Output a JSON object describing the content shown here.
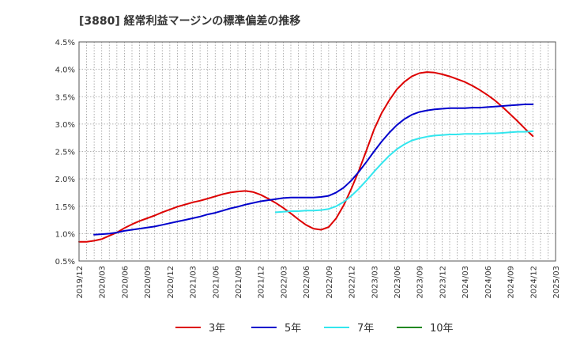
{
  "chart_data": {
    "type": "line",
    "title": "[3880]  経常利益マージンの標準偏差の推移",
    "xlabel": "",
    "ylabel": "",
    "ylim": [
      0.5,
      4.5
    ],
    "yticks": [
      "0.5%",
      "1.0%",
      "1.5%",
      "2.0%",
      "2.5%",
      "3.0%",
      "3.5%",
      "4.0%",
      "4.5%"
    ],
    "ytick_values": [
      0.5,
      1.0,
      1.5,
      2.0,
      2.5,
      3.0,
      3.5,
      4.0,
      4.5
    ],
    "xticks": [
      "2019/12",
      "2020/03",
      "2020/06",
      "2020/09",
      "2020/12",
      "2021/03",
      "2021/06",
      "2021/09",
      "2021/12",
      "2022/03",
      "2022/06",
      "2022/09",
      "2022/12",
      "2023/03",
      "2023/06",
      "2023/09",
      "2023/12",
      "2024/03",
      "2024/06",
      "2024/09",
      "2024/12",
      "2025/03"
    ],
    "grid": true,
    "legend_position": "bottom",
    "series": [
      {
        "name": "3年",
        "color": "#dd0000",
        "x": [
          "2019/12",
          "2020/01",
          "2020/02",
          "2020/03",
          "2020/04",
          "2020/05",
          "2020/06",
          "2020/07",
          "2020/08",
          "2020/09",
          "2020/10",
          "2020/11",
          "2020/12",
          "2021/01",
          "2021/02",
          "2021/03",
          "2021/04",
          "2021/05",
          "2021/06",
          "2021/07",
          "2021/08",
          "2021/09",
          "2021/10",
          "2021/11",
          "2021/12",
          "2022/01",
          "2022/02",
          "2022/03",
          "2022/04",
          "2022/05",
          "2022/06",
          "2022/07",
          "2022/08",
          "2022/09",
          "2022/10",
          "2022/11",
          "2022/12",
          "2023/01",
          "2023/02",
          "2023/03",
          "2023/04",
          "2023/05",
          "2023/06",
          "2023/07",
          "2023/08",
          "2023/09",
          "2023/10",
          "2023/11",
          "2023/12",
          "2024/01",
          "2024/02",
          "2024/03",
          "2024/04",
          "2024/05",
          "2024/06",
          "2024/07",
          "2024/08",
          "2024/09",
          "2024/10",
          "2024/11",
          "2024/12"
        ],
        "values": [
          0.85,
          0.85,
          0.87,
          0.9,
          0.96,
          1.02,
          1.1,
          1.17,
          1.23,
          1.28,
          1.33,
          1.39,
          1.44,
          1.49,
          1.53,
          1.57,
          1.6,
          1.64,
          1.68,
          1.72,
          1.75,
          1.77,
          1.78,
          1.76,
          1.71,
          1.64,
          1.56,
          1.47,
          1.37,
          1.26,
          1.16,
          1.09,
          1.07,
          1.12,
          1.28,
          1.52,
          1.82,
          2.15,
          2.52,
          2.9,
          3.2,
          3.43,
          3.63,
          3.77,
          3.87,
          3.93,
          3.95,
          3.94,
          3.91,
          3.87,
          3.82,
          3.77,
          3.7,
          3.62,
          3.53,
          3.43,
          3.31,
          3.18,
          3.05,
          2.91,
          2.78
        ]
      },
      {
        "name": "5年",
        "color": "#0000cc",
        "x": [
          "2020/02",
          "2020/03",
          "2020/04",
          "2020/05",
          "2020/06",
          "2020/07",
          "2020/08",
          "2020/09",
          "2020/10",
          "2020/11",
          "2020/12",
          "2021/01",
          "2021/02",
          "2021/03",
          "2021/04",
          "2021/05",
          "2021/06",
          "2021/07",
          "2021/08",
          "2021/09",
          "2021/10",
          "2021/11",
          "2021/12",
          "2022/01",
          "2022/02",
          "2022/03",
          "2022/04",
          "2022/05",
          "2022/06",
          "2022/07",
          "2022/08",
          "2022/09",
          "2022/10",
          "2022/11",
          "2022/12",
          "2023/01",
          "2023/02",
          "2023/03",
          "2023/04",
          "2023/05",
          "2023/06",
          "2023/07",
          "2023/08",
          "2023/09",
          "2023/10",
          "2023/11",
          "2023/12",
          "2024/01",
          "2024/02",
          "2024/03",
          "2024/04",
          "2024/05",
          "2024/06",
          "2024/07",
          "2024/08",
          "2024/09",
          "2024/10",
          "2024/11",
          "2024/12"
        ],
        "values": [
          0.98,
          0.99,
          1.0,
          1.02,
          1.05,
          1.07,
          1.09,
          1.11,
          1.13,
          1.16,
          1.19,
          1.22,
          1.25,
          1.28,
          1.31,
          1.35,
          1.38,
          1.42,
          1.46,
          1.49,
          1.53,
          1.56,
          1.59,
          1.61,
          1.63,
          1.65,
          1.66,
          1.66,
          1.66,
          1.66,
          1.67,
          1.69,
          1.75,
          1.84,
          1.97,
          2.13,
          2.31,
          2.5,
          2.68,
          2.84,
          2.98,
          3.09,
          3.17,
          3.22,
          3.25,
          3.27,
          3.28,
          3.29,
          3.29,
          3.29,
          3.3,
          3.3,
          3.31,
          3.32,
          3.33,
          3.34,
          3.35,
          3.36,
          3.36
        ]
      },
      {
        "name": "7年",
        "color": "#33e6ee",
        "x": [
          "2022/02",
          "2022/03",
          "2022/04",
          "2022/05",
          "2022/06",
          "2022/07",
          "2022/08",
          "2022/09",
          "2022/10",
          "2022/11",
          "2022/12",
          "2023/01",
          "2023/02",
          "2023/03",
          "2023/04",
          "2023/05",
          "2023/06",
          "2023/07",
          "2023/08",
          "2023/09",
          "2023/10",
          "2023/11",
          "2023/12",
          "2024/01",
          "2024/02",
          "2024/03",
          "2024/04",
          "2024/05",
          "2024/06",
          "2024/07",
          "2024/08",
          "2024/09",
          "2024/10",
          "2024/11",
          "2024/12"
        ],
        "values": [
          1.39,
          1.4,
          1.41,
          1.41,
          1.42,
          1.42,
          1.43,
          1.45,
          1.5,
          1.58,
          1.69,
          1.82,
          1.97,
          2.13,
          2.28,
          2.42,
          2.54,
          2.63,
          2.7,
          2.74,
          2.77,
          2.79,
          2.8,
          2.81,
          2.81,
          2.82,
          2.82,
          2.82,
          2.83,
          2.83,
          2.84,
          2.85,
          2.86,
          2.86,
          2.87
        ]
      },
      {
        "name": "10年",
        "color": "#228822",
        "x": [],
        "values": []
      }
    ]
  }
}
